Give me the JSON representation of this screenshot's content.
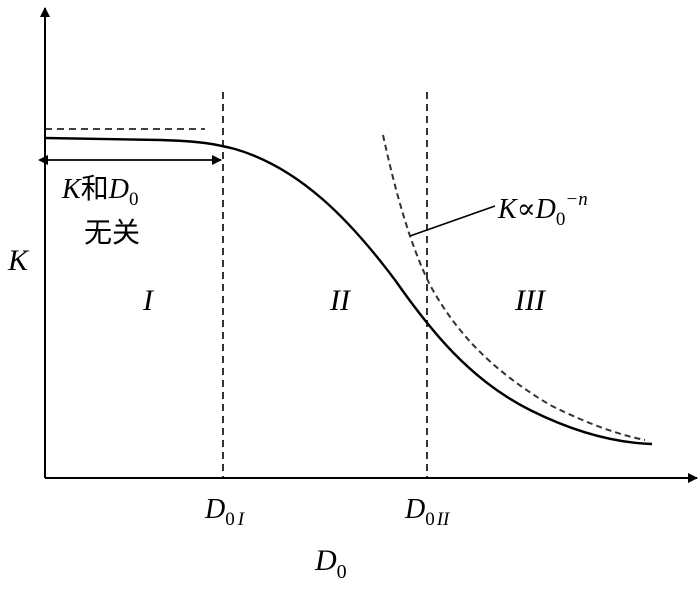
{
  "axes": {
    "y_label": "K",
    "x_label": {
      "base": "D",
      "sub": "0"
    }
  },
  "markers": [
    {
      "base": "D",
      "sub": "0",
      "roman": "I"
    },
    {
      "base": "D",
      "sub": "0",
      "roman": "II"
    }
  ],
  "regions": [
    "I",
    "II",
    "III"
  ],
  "annotations": {
    "independent": {
      "k": "K",
      "he": "和",
      "d": "D",
      "sub": "0",
      "line2": "无关"
    },
    "power_law": {
      "k": "K",
      "prop": "∝",
      "d": "D",
      "sub": "0",
      "exp": "−n"
    }
  }
}
